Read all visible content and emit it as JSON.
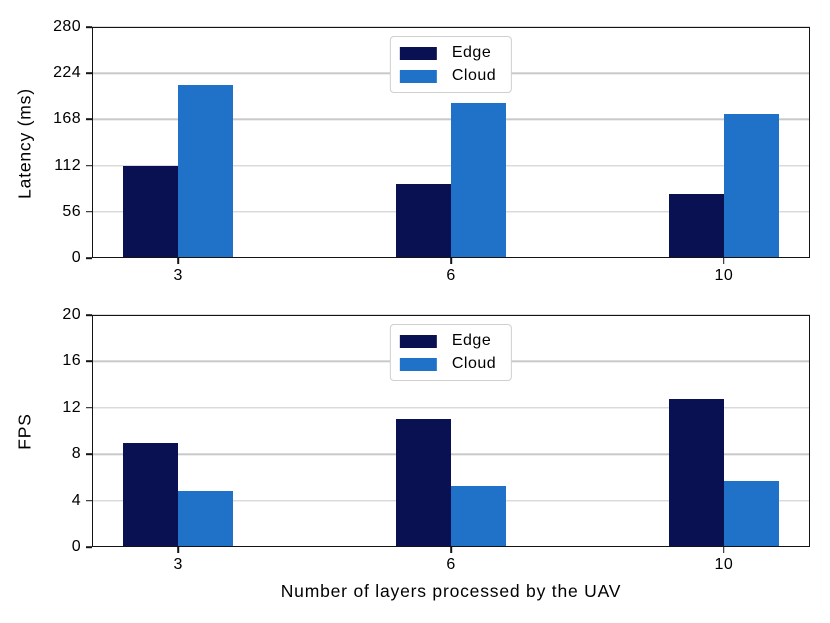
{
  "colors": {
    "edge": "#0a1153",
    "cloud": "#2072c9",
    "grid": "#c9c9c9",
    "spine": "#141414",
    "background": "#ffffff",
    "legend_border": "#cfcfcf"
  },
  "chart_data": [
    {
      "type": "bar",
      "title": "",
      "xlabel": "",
      "ylabel": "Latency (ms)",
      "categories": [
        "3",
        "6",
        "10"
      ],
      "yticks": [
        0,
        56,
        112,
        168,
        224,
        280
      ],
      "ylim": [
        0,
        280
      ],
      "grid": true,
      "legend_position": "upper center",
      "legend_labels": [
        "Edge",
        "Cloud"
      ],
      "series": [
        {
          "name": "Edge",
          "color": "#0a1153",
          "values": [
            112,
            90,
            78
          ]
        },
        {
          "name": "Cloud",
          "color": "#2072c9",
          "values": [
            210,
            188,
            175
          ]
        }
      ]
    },
    {
      "type": "bar",
      "title": "",
      "xlabel": "Number of layers processed by the UAV",
      "ylabel": "FPS",
      "categories": [
        "3",
        "6",
        "10"
      ],
      "yticks": [
        0,
        4,
        8,
        12,
        16,
        20
      ],
      "ylim": [
        0,
        20
      ],
      "grid": true,
      "legend_position": "upper center",
      "legend_labels": [
        "Edge",
        "Cloud"
      ],
      "series": [
        {
          "name": "Edge",
          "color": "#0a1153",
          "values": [
            9,
            11,
            12.8
          ]
        },
        {
          "name": "Cloud",
          "color": "#2072c9",
          "values": [
            4.8,
            5.3,
            5.7
          ]
        }
      ]
    }
  ]
}
